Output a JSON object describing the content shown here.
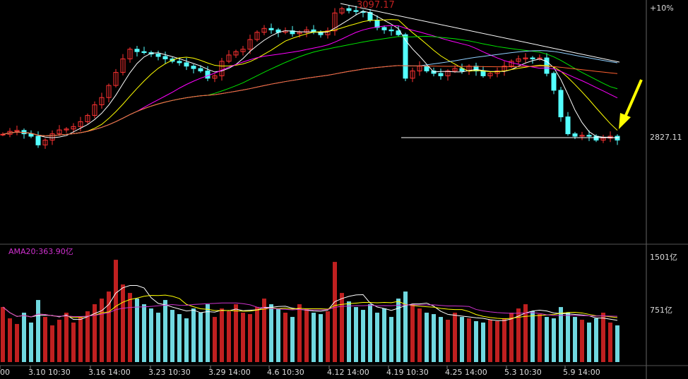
{
  "chart_data": {
    "type": "candlestick",
    "price_axis": {
      "labels": [
        "+10%",
        "2827.11"
      ],
      "ref_price": 2827.11
    },
    "annotations": {
      "high_label": "3097.17",
      "support_price": 2827.11
    },
    "x_tick_labels": [
      "00",
      "3.10 10:30",
      "3.16 14:00",
      "3.23 10:30",
      "3.29 14:00",
      "4.6 10:30",
      "4.12 14:00",
      "4.19 10:30",
      "4.25 14:00",
      "5.3 10:30",
      "5.9 14:00"
    ],
    "closes": [
      2834,
      2840,
      2842,
      2835,
      2830,
      2812,
      2822,
      2835,
      2843,
      2845,
      2850,
      2860,
      2873,
      2895,
      2910,
      2935,
      2962,
      2990,
      3010,
      3005,
      3003,
      3000,
      2995,
      2990,
      2985,
      2982,
      2975,
      2970,
      2965,
      2950,
      2955,
      2985,
      2998,
      3005,
      3010,
      3030,
      3045,
      3053,
      3050,
      3045,
      3048,
      3042,
      3045,
      3050,
      3045,
      3040,
      3048,
      3085,
      3094,
      3090,
      3088,
      3086,
      3070,
      3055,
      3050,
      3048,
      3040,
      2950,
      2965,
      2975,
      2965,
      2960,
      2955,
      2965,
      2970,
      2965,
      2975,
      2965,
      2955,
      2960,
      2965,
      2975,
      2985,
      2990,
      2992,
      2990,
      2992,
      2960,
      2925,
      2870,
      2835,
      2830,
      2832,
      2830,
      2822,
      2826,
      2830,
      2822
    ],
    "volume": {
      "label": "AMA20:363.90亿",
      "axis_labels": [
        "1501亿",
        "751亿"
      ],
      "axis_values": [
        1501,
        751
      ],
      "values": [
        780,
        620,
        540,
        700,
        560,
        880,
        640,
        520,
        600,
        700,
        560,
        640,
        720,
        820,
        900,
        1000,
        1450,
        1100,
        980,
        900,
        820,
        760,
        700,
        880,
        740,
        680,
        620,
        760,
        700,
        820,
        640,
        760,
        720,
        820,
        700,
        680,
        780,
        900,
        820,
        760,
        700,
        640,
        820,
        760,
        700,
        680,
        720,
        1420,
        980,
        860,
        780,
        740,
        820,
        700,
        760,
        640,
        900,
        1000,
        820,
        760,
        700,
        680,
        640,
        600,
        700,
        640,
        620,
        580,
        560,
        600,
        580,
        620,
        700,
        760,
        820,
        720,
        680,
        640,
        620,
        780,
        700,
        640,
        600,
        560,
        620,
        700,
        560,
        520
      ]
    },
    "colors": {
      "up": "#ff3232",
      "down": "#54ffff",
      "ma5": "#ffffff",
      "ma10": "#ffff00",
      "ma20": "#ff00ff",
      "ma30": "#00e600",
      "ma60": "#90d0ff",
      "ma120": "#ff6030",
      "ama": "#cc33cc",
      "arrow": "#ffff00"
    }
  }
}
